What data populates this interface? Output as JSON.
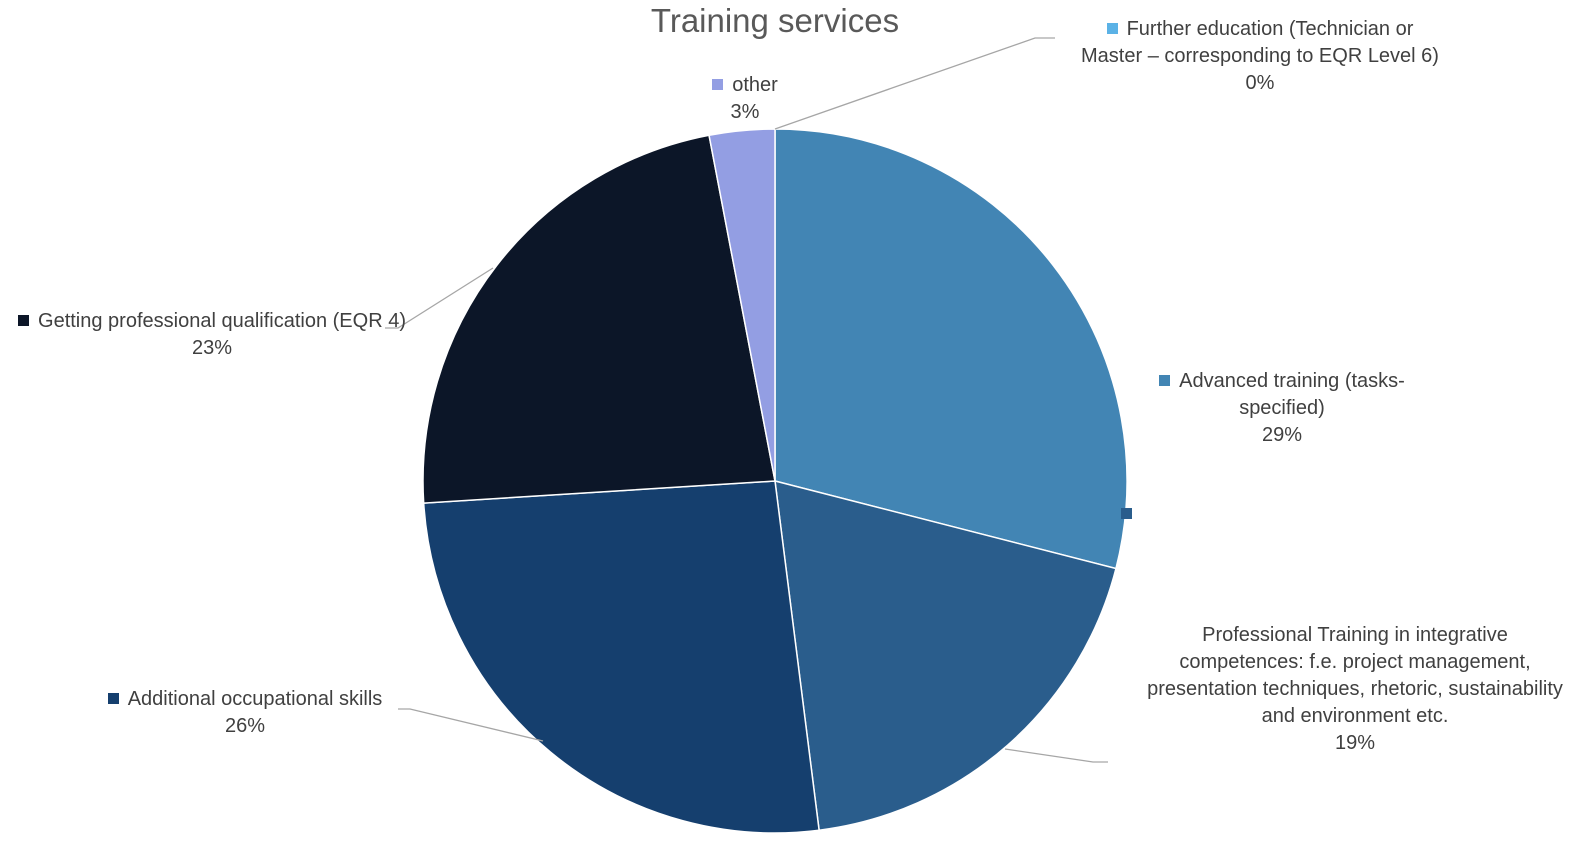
{
  "chart_data": {
    "type": "pie",
    "title": "Training services",
    "categories": [
      "Further education (Technician or Master – corresponding to EQR Level 6)",
      "Advanced training (tasks-specified)",
      "Professional Training in integrative competences: f.e. project management, presentation techniques, rhetoric, sustainability and environment etc.",
      "Additional occupational skills",
      "Getting professional qualification (EQR 4)",
      "other"
    ],
    "values": [
      0,
      29,
      19,
      26,
      23,
      3
    ],
    "value_labels": [
      "0%",
      "29%",
      "19%",
      "26%",
      "23%",
      "3%"
    ],
    "colors": [
      "#5bb2e6",
      "#4285b4",
      "#2a5d8c",
      "#153f6e",
      "#0c1628",
      "#939ee3"
    ]
  }
}
